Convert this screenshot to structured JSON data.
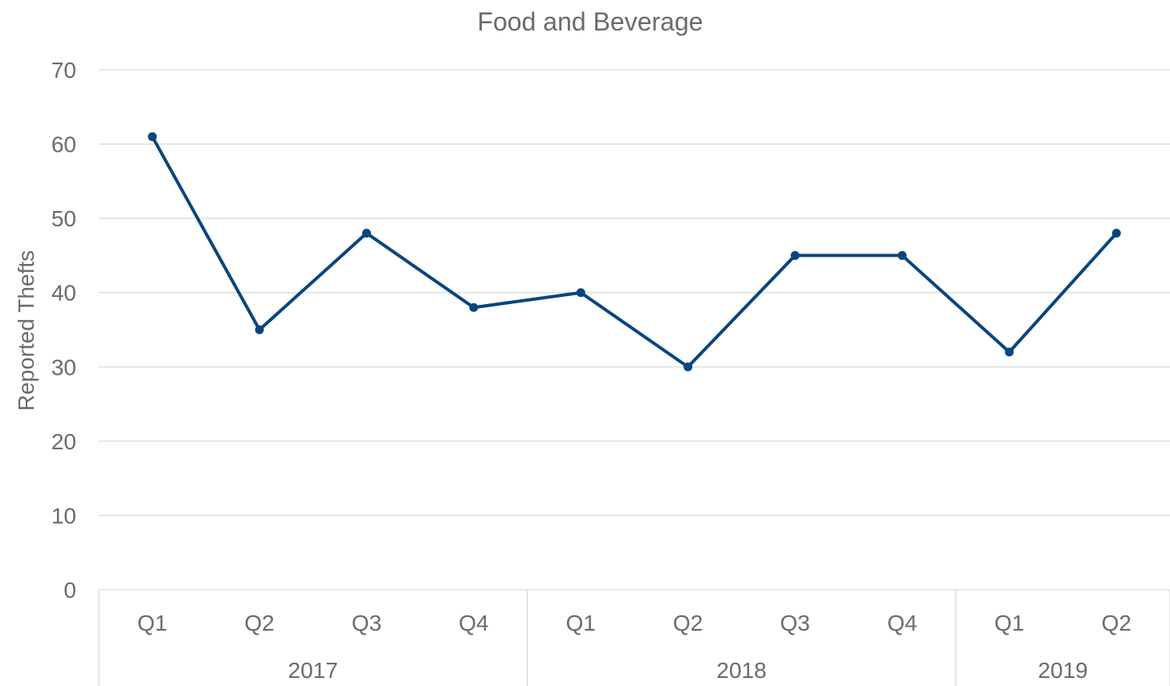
{
  "chart_data": {
    "type": "line",
    "title": "Food and Beverage",
    "xlabel": "",
    "ylabel": "Reported Thefts",
    "ylim": [
      0,
      70
    ],
    "yticks": [
      "0",
      "10",
      "20",
      "30",
      "40",
      "50",
      "60",
      "70"
    ],
    "grid": true,
    "legend": "none",
    "categories": [
      "Q1",
      "Q2",
      "Q3",
      "Q4",
      "Q1",
      "Q2",
      "Q3",
      "Q4",
      "Q1",
      "Q2"
    ],
    "groups": [
      {
        "label": "2017",
        "count": 4
      },
      {
        "label": "2018",
        "count": 4
      },
      {
        "label": "2019",
        "count": 2
      }
    ],
    "series": [
      {
        "values": [
          61,
          35,
          48,
          38,
          40,
          30,
          45,
          45,
          32,
          48
        ]
      }
    ],
    "colors": {
      "line": "#08457e",
      "text": "#6b6b6b",
      "grid": "#d9d9d9"
    }
  }
}
